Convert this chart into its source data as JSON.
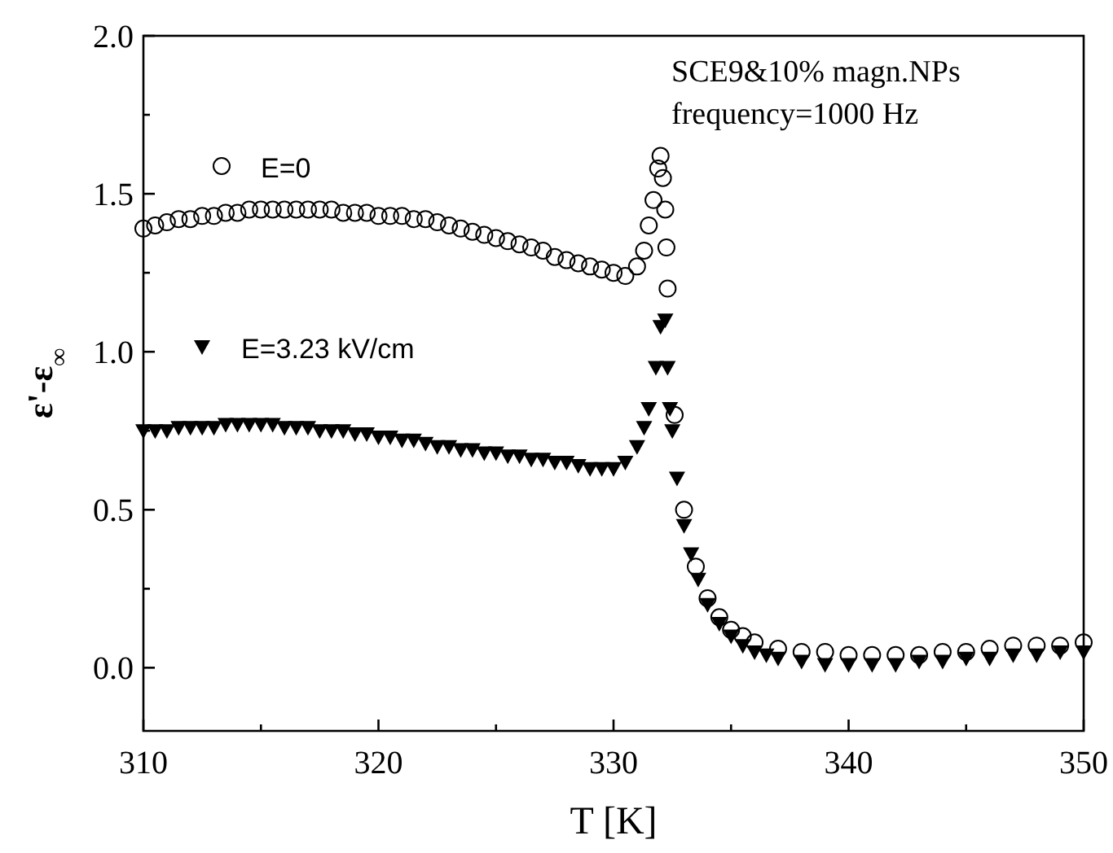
{
  "chart_data": {
    "type": "scatter",
    "xlabel": "T [K]",
    "ylabel": "ε'-ε$_{∞}$",
    "annotations": [
      "SCE9&10% magn.NPs",
      "frequency=1000 Hz"
    ],
    "xlim": [
      310,
      350
    ],
    "xticks": [
      310,
      {
        "value": 315,
        "label": null
      },
      320,
      {
        "value": 325,
        "label": null
      },
      330,
      {
        "value": 335,
        "label": null
      },
      340,
      {
        "value": 345,
        "label": null
      },
      350
    ],
    "ylim": [
      -0.2,
      2.0
    ],
    "yticks": [
      {
        "value": 0,
        "label": "0.0"
      },
      {
        "value": 0.25,
        "label": null
      },
      0.5,
      {
        "value": 0.75,
        "label": null
      },
      {
        "value": 1,
        "label": "1.0"
      },
      {
        "value": 1.25,
        "label": null
      },
      1.5,
      {
        "value": 1.75,
        "label": null
      },
      {
        "value": 2,
        "label": "2.0"
      }
    ],
    "legend": "top left",
    "series": [
      {
        "name": "E=0",
        "color": "#000000",
        "marker": "circle",
        "x": [
          310,
          310.5,
          311,
          311.5,
          312,
          312.5,
          313,
          313.5,
          314,
          314.5,
          315,
          315.5,
          316,
          316.5,
          317,
          317.5,
          318,
          318.5,
          319,
          319.5,
          320,
          320.5,
          321,
          321.5,
          322,
          322.5,
          323,
          323.5,
          324,
          324.5,
          325,
          325.5,
          326,
          326.5,
          327,
          327.5,
          328,
          328.5,
          329,
          329.5,
          330,
          330.5,
          331,
          331.3,
          331.5,
          331.7,
          331.9,
          332,
          332.1,
          332.2,
          332.25,
          332.3,
          332.6,
          333,
          333.5,
          334,
          334.5,
          335,
          335.5,
          336,
          337,
          338,
          339,
          340,
          341,
          342,
          343,
          344,
          345,
          346,
          347,
          348,
          349,
          350
        ],
        "values": [
          1.39,
          1.4,
          1.41,
          1.42,
          1.42,
          1.43,
          1.43,
          1.44,
          1.44,
          1.45,
          1.45,
          1.45,
          1.45,
          1.45,
          1.45,
          1.45,
          1.45,
          1.44,
          1.44,
          1.44,
          1.43,
          1.43,
          1.43,
          1.42,
          1.42,
          1.41,
          1.4,
          1.39,
          1.38,
          1.37,
          1.36,
          1.35,
          1.34,
          1.33,
          1.32,
          1.3,
          1.29,
          1.28,
          1.27,
          1.26,
          1.25,
          1.24,
          1.27,
          1.32,
          1.4,
          1.48,
          1.58,
          1.62,
          1.55,
          1.45,
          1.33,
          1.2,
          0.8,
          0.5,
          0.32,
          0.22,
          0.16,
          0.12,
          0.1,
          0.08,
          0.06,
          0.05,
          0.05,
          0.04,
          0.04,
          0.04,
          0.04,
          0.05,
          0.05,
          0.06,
          0.07,
          0.07,
          0.07,
          0.08
        ]
      },
      {
        "name": "E=3.23 kV/cm",
        "color": "#000000",
        "marker": "triangle",
        "x": [
          310,
          310.5,
          311,
          311.5,
          312,
          312.5,
          313,
          313.5,
          314,
          314.5,
          315,
          315.5,
          316,
          316.5,
          317,
          317.5,
          318,
          318.5,
          319,
          319.5,
          320,
          320.5,
          321,
          321.5,
          322,
          322.5,
          323,
          323.5,
          324,
          324.5,
          325,
          325.5,
          326,
          326.5,
          327,
          327.5,
          328,
          328.5,
          329,
          329.5,
          330,
          330.5,
          331,
          331.3,
          331.5,
          331.8,
          332,
          332.2,
          332.3,
          332.4,
          332.5,
          332.7,
          333,
          333.3,
          333.6,
          334,
          334.5,
          335,
          335.5,
          336,
          336.5,
          337,
          338,
          339,
          340,
          341,
          342,
          343,
          344,
          345,
          346,
          347,
          348,
          349,
          350
        ],
        "values": [
          0.75,
          0.75,
          0.75,
          0.76,
          0.76,
          0.76,
          0.76,
          0.77,
          0.77,
          0.77,
          0.77,
          0.77,
          0.76,
          0.76,
          0.76,
          0.75,
          0.75,
          0.75,
          0.74,
          0.74,
          0.73,
          0.73,
          0.72,
          0.72,
          0.71,
          0.7,
          0.7,
          0.69,
          0.69,
          0.68,
          0.68,
          0.67,
          0.67,
          0.66,
          0.66,
          0.65,
          0.65,
          0.64,
          0.63,
          0.63,
          0.63,
          0.65,
          0.7,
          0.76,
          0.82,
          0.95,
          1.08,
          1.1,
          0.95,
          0.82,
          0.75,
          0.6,
          0.45,
          0.36,
          0.28,
          0.2,
          0.14,
          0.1,
          0.07,
          0.05,
          0.04,
          0.03,
          0.02,
          0.01,
          0.01,
          0.01,
          0.01,
          0.02,
          0.02,
          0.03,
          0.03,
          0.04,
          0.04,
          0.05,
          0.05
        ]
      }
    ]
  }
}
